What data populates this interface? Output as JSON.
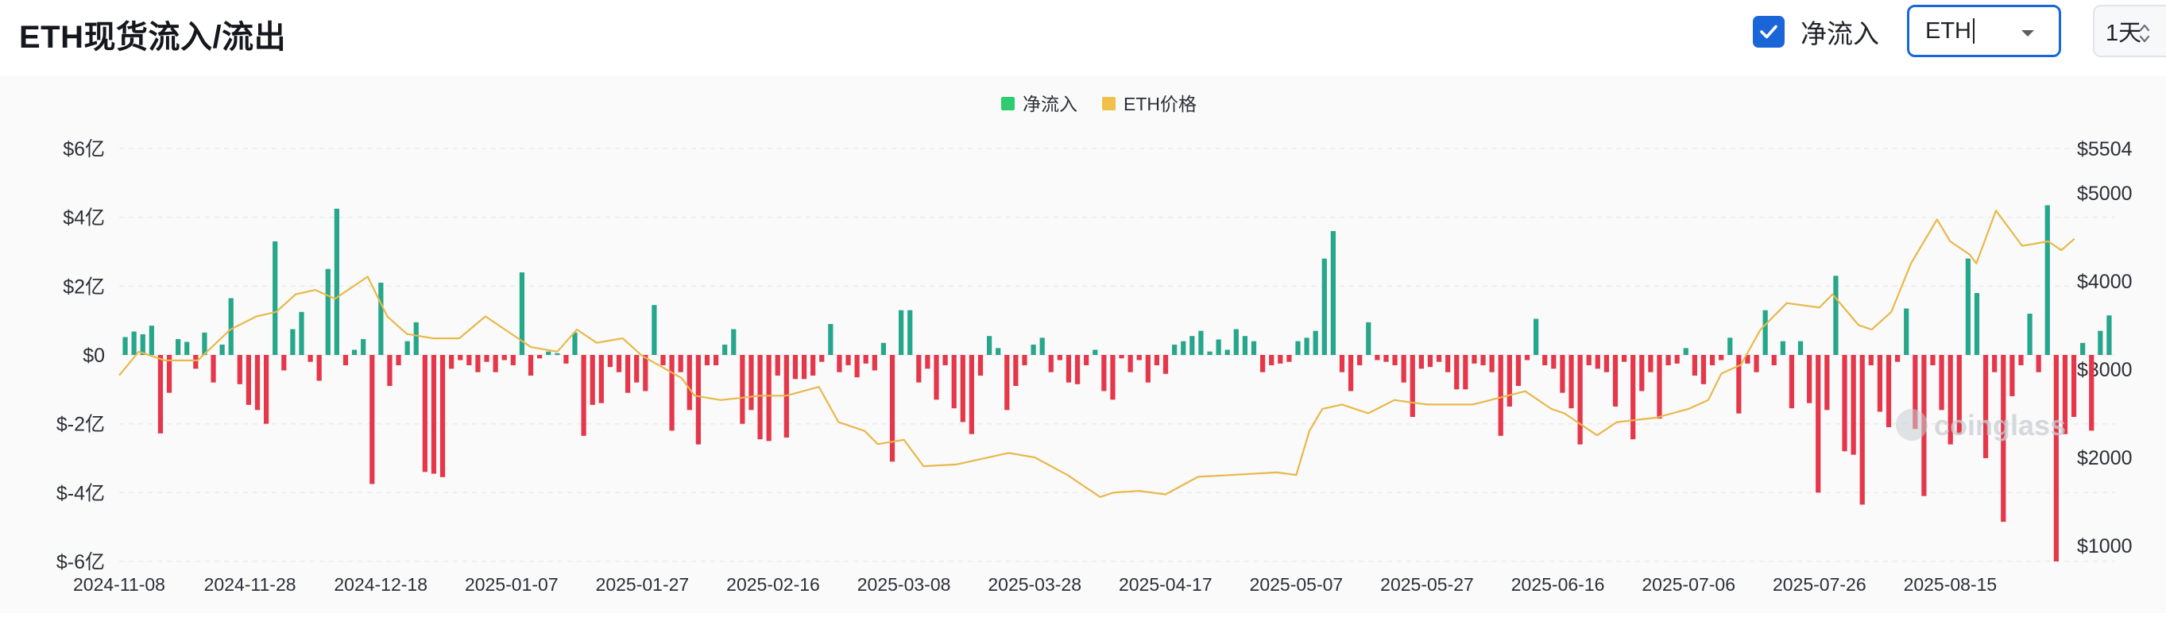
{
  "header": {
    "title": "ETH现货流入/流出",
    "net_toggle_label": "净流入",
    "net_toggle_checked": true,
    "coin_select_value": "ETH",
    "interval_select_value": "1天"
  },
  "icons": {
    "checkbox": "checkmark-icon",
    "coin_dropdown": "chevron-down-icon",
    "interval_dropdown": "up-down-chevron-icon",
    "watermark": "coinglass-logo-icon"
  },
  "watermark_text": "coinglass",
  "colors": {
    "inflow": "#26a68a",
    "outflow": "#e5364a",
    "price": "#e8b84a",
    "legend_inflow": "#2ecc71",
    "legend_price": "#f0c04a",
    "accent": "#1a66d9"
  },
  "chart_data": {
    "type": "bar",
    "legend": [
      "净流入",
      "ETH价格"
    ],
    "legend_placement": "top-center",
    "grid": true,
    "y_left": {
      "ticks": [
        "$6亿",
        "$4亿",
        "$2亿",
        "$0",
        "$-2亿",
        "$-4亿",
        "$-6亿"
      ],
      "min": -6,
      "max": 6,
      "unit": "亿 USD"
    },
    "y_right": {
      "ticks": [
        "$5504",
        "$5000",
        "$4000",
        "$3000",
        "$2000",
        "$1000"
      ],
      "min": 600,
      "max": 5504,
      "unit": "USD"
    },
    "x_ticks": [
      "2024-11-08",
      "2024-11-28",
      "2024-12-18",
      "2025-01-07",
      "2025-01-27",
      "2025-02-16",
      "2025-03-08",
      "2025-03-28",
      "2025-04-17",
      "2025-05-07",
      "2025-05-27",
      "2025-06-16",
      "2025-07-06",
      "2025-07-26",
      "2025-08-15"
    ],
    "x_start": "2024-11-08",
    "x_end": "2025-08-25",
    "series": [
      {
        "name": "净流入",
        "unit": "亿 USD",
        "values": [
          0.52,
          0.68,
          0.6,
          0.85,
          -2.28,
          -1.1,
          0.46,
          0.38,
          -0.4,
          0.65,
          -0.8,
          0.3,
          1.65,
          -0.85,
          -1.45,
          -1.6,
          -2.0,
          3.3,
          -0.45,
          0.75,
          1.25,
          -0.2,
          -0.75,
          2.5,
          4.25,
          -0.3,
          0.15,
          0.46,
          -3.75,
          2.1,
          -0.9,
          -0.3,
          0.4,
          0.95,
          -3.4,
          -3.45,
          -3.55,
          -0.4,
          -0.15,
          -0.3,
          -0.5,
          -0.2,
          -0.5,
          -0.15,
          -0.3,
          2.4,
          -0.6,
          -0.1,
          0.1,
          0.05,
          -0.25,
          0.65,
          -2.35,
          -1.45,
          -1.4,
          -0.35,
          -0.5,
          -1.1,
          -0.8,
          -1.05,
          1.45,
          -0.3,
          -2.2,
          -0.5,
          -1.6,
          -2.6,
          -0.3,
          -0.3,
          0.3,
          0.75,
          -2.0,
          -1.6,
          -2.45,
          -2.5,
          -0.6,
          -2.4,
          -0.7,
          -0.7,
          -0.6,
          -0.2,
          0.9,
          -0.5,
          -0.3,
          -0.65,
          -0.25,
          -0.45,
          0.35,
          -3.1,
          1.3,
          1.3,
          -0.8,
          -0.4,
          -1.3,
          -0.3,
          -1.55,
          -1.95,
          -2.3,
          -0.6,
          0.55,
          0.2,
          -1.6,
          -0.9,
          -0.3,
          0.3,
          0.5,
          -0.5,
          -0.15,
          -0.8,
          -0.85,
          -0.3,
          0.15,
          -1.05,
          -1.3,
          -0.1,
          -0.5,
          -0.15,
          -0.8,
          -0.3,
          -0.55,
          0.3,
          0.4,
          0.55,
          0.7,
          0.1,
          0.45,
          0.15,
          0.75,
          0.55,
          0.4,
          -0.5,
          -0.3,
          -0.25,
          -0.2,
          0.4,
          0.5,
          0.7,
          2.8,
          3.6,
          -0.5,
          -1.05,
          -0.3,
          0.95,
          -0.15,
          -0.2,
          -0.3,
          -0.8,
          -1.8,
          -0.4,
          -0.35,
          -0.2,
          -0.5,
          -1.0,
          -1.0,
          -0.25,
          -0.3,
          -0.5,
          -2.35,
          -1.5,
          -0.9,
          -0.15,
          1.05,
          -0.3,
          -0.4,
          -1.1,
          -1.55,
          -2.6,
          -0.3,
          -0.4,
          -0.5,
          -1.5,
          -0.2,
          -2.45,
          -1.05,
          -0.5,
          -1.85,
          -0.3,
          -0.25,
          0.2,
          -0.6,
          -0.85,
          -0.3,
          -0.15,
          0.5,
          -1.7,
          -0.25,
          -0.5,
          1.3,
          -0.3,
          0.4,
          -1.55,
          0.4,
          -1.4,
          -4.0,
          -1.6,
          2.3,
          -2.8,
          -2.9,
          -4.35,
          -0.3,
          -1.65,
          -2.1,
          -0.2,
          1.35,
          -2.15,
          -4.1,
          -0.3,
          -1.6,
          -2.6,
          -2.3,
          2.8,
          1.8,
          -3.0,
          -0.5,
          -4.85,
          -1.2,
          -0.3,
          1.2,
          -0.5,
          4.35,
          -6.0,
          -2.3,
          -1.8,
          0.35,
          -2.2,
          0.7,
          1.15
        ]
      },
      {
        "name": "ETH价格",
        "unit": "USD",
        "points": [
          [
            "2024-11-08",
            2930
          ],
          [
            "2024-11-11",
            3200
          ],
          [
            "2024-11-15",
            3100
          ],
          [
            "2024-11-20",
            3100
          ],
          [
            "2024-11-25",
            3450
          ],
          [
            "2024-11-29",
            3600
          ],
          [
            "2024-12-02",
            3650
          ],
          [
            "2024-12-05",
            3850
          ],
          [
            "2024-12-08",
            3900
          ],
          [
            "2024-12-11",
            3800
          ],
          [
            "2024-12-16",
            4050
          ],
          [
            "2024-12-19",
            3600
          ],
          [
            "2024-12-22",
            3400
          ],
          [
            "2024-12-26",
            3350
          ],
          [
            "2024-12-30",
            3350
          ],
          [
            "2025-01-03",
            3600
          ],
          [
            "2025-01-07",
            3400
          ],
          [
            "2025-01-10",
            3250
          ],
          [
            "2025-01-14",
            3200
          ],
          [
            "2025-01-17",
            3450
          ],
          [
            "2025-01-20",
            3300
          ],
          [
            "2025-01-24",
            3350
          ],
          [
            "2025-01-27",
            3150
          ],
          [
            "2025-02-02",
            2900
          ],
          [
            "2025-02-04",
            2700
          ],
          [
            "2025-02-08",
            2650
          ],
          [
            "2025-02-14",
            2700
          ],
          [
            "2025-02-18",
            2700
          ],
          [
            "2025-02-23",
            2800
          ],
          [
            "2025-02-26",
            2400
          ],
          [
            "2025-03-02",
            2300
          ],
          [
            "2025-03-04",
            2150
          ],
          [
            "2025-03-08",
            2200
          ],
          [
            "2025-03-11",
            1900
          ],
          [
            "2025-03-16",
            1920
          ],
          [
            "2025-03-24",
            2050
          ],
          [
            "2025-03-28",
            2000
          ],
          [
            "2025-04-02",
            1800
          ],
          [
            "2025-04-07",
            1550
          ],
          [
            "2025-04-09",
            1600
          ],
          [
            "2025-04-13",
            1620
          ],
          [
            "2025-04-17",
            1580
          ],
          [
            "2025-04-22",
            1780
          ],
          [
            "2025-04-27",
            1800
          ],
          [
            "2025-05-04",
            1830
          ],
          [
            "2025-05-07",
            1800
          ],
          [
            "2025-05-09",
            2300
          ],
          [
            "2025-05-11",
            2550
          ],
          [
            "2025-05-14",
            2600
          ],
          [
            "2025-05-18",
            2500
          ],
          [
            "2025-05-22",
            2650
          ],
          [
            "2025-05-27",
            2600
          ],
          [
            "2025-06-03",
            2600
          ],
          [
            "2025-06-11",
            2750
          ],
          [
            "2025-06-15",
            2550
          ],
          [
            "2025-06-17",
            2500
          ],
          [
            "2025-06-22",
            2250
          ],
          [
            "2025-06-25",
            2400
          ],
          [
            "2025-07-01",
            2450
          ],
          [
            "2025-07-06",
            2550
          ],
          [
            "2025-07-09",
            2650
          ],
          [
            "2025-07-11",
            2950
          ],
          [
            "2025-07-14",
            3050
          ],
          [
            "2025-07-17",
            3450
          ],
          [
            "2025-07-21",
            3750
          ],
          [
            "2025-07-26",
            3700
          ],
          [
            "2025-07-28",
            3850
          ],
          [
            "2025-08-01",
            3500
          ],
          [
            "2025-08-03",
            3450
          ],
          [
            "2025-08-06",
            3650
          ],
          [
            "2025-08-09",
            4200
          ],
          [
            "2025-08-13",
            4700
          ],
          [
            "2025-08-15",
            4450
          ],
          [
            "2025-08-18",
            4300
          ],
          [
            "2025-08-19",
            4200
          ],
          [
            "2025-08-22",
            4800
          ],
          [
            "2025-08-24",
            4600
          ],
          [
            "2025-08-26",
            4400
          ],
          [
            "2025-08-30",
            4450
          ],
          [
            "2025-09-01",
            4350
          ],
          [
            "2025-09-03",
            4480
          ]
        ]
      }
    ]
  }
}
